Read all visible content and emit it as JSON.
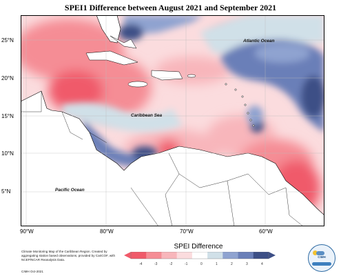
{
  "title": "SPEI1 Difference between August 2021 and September 2021",
  "axes": {
    "lat_labels": [
      "25°N",
      "20°N",
      "15°N",
      "10°N",
      "5°N"
    ],
    "lon_labels": [
      "90°W",
      "80°W",
      "70°W",
      "60°W"
    ]
  },
  "sea_labels": {
    "atlantic": "Atlantic Ocean",
    "caribbean": "Caribbean Sea",
    "pacific": "Pacific Ocean"
  },
  "legend": {
    "title": "SPEI Difference",
    "ticks": [
      "-4",
      "-3",
      "-2",
      "-1",
      "0",
      "1",
      "2",
      "3",
      "4"
    ],
    "colors": [
      "#f05a6a",
      "#f58d95",
      "#f8b6bb",
      "#fbdcde",
      "#ffffff",
      "#d0e0e8",
      "#8fa3d0",
      "#6a7fb8",
      "#3d4f86"
    ]
  },
  "credits": "Climate Monitoring Map of the Caribbean Region. Created by aggregating station based observations, provided by CariCOF, with NCEP/NCAR Reanalysis Data.",
  "cimh_date": "CIMH Oct-2021",
  "logo": {
    "text": "CIMH"
  }
}
